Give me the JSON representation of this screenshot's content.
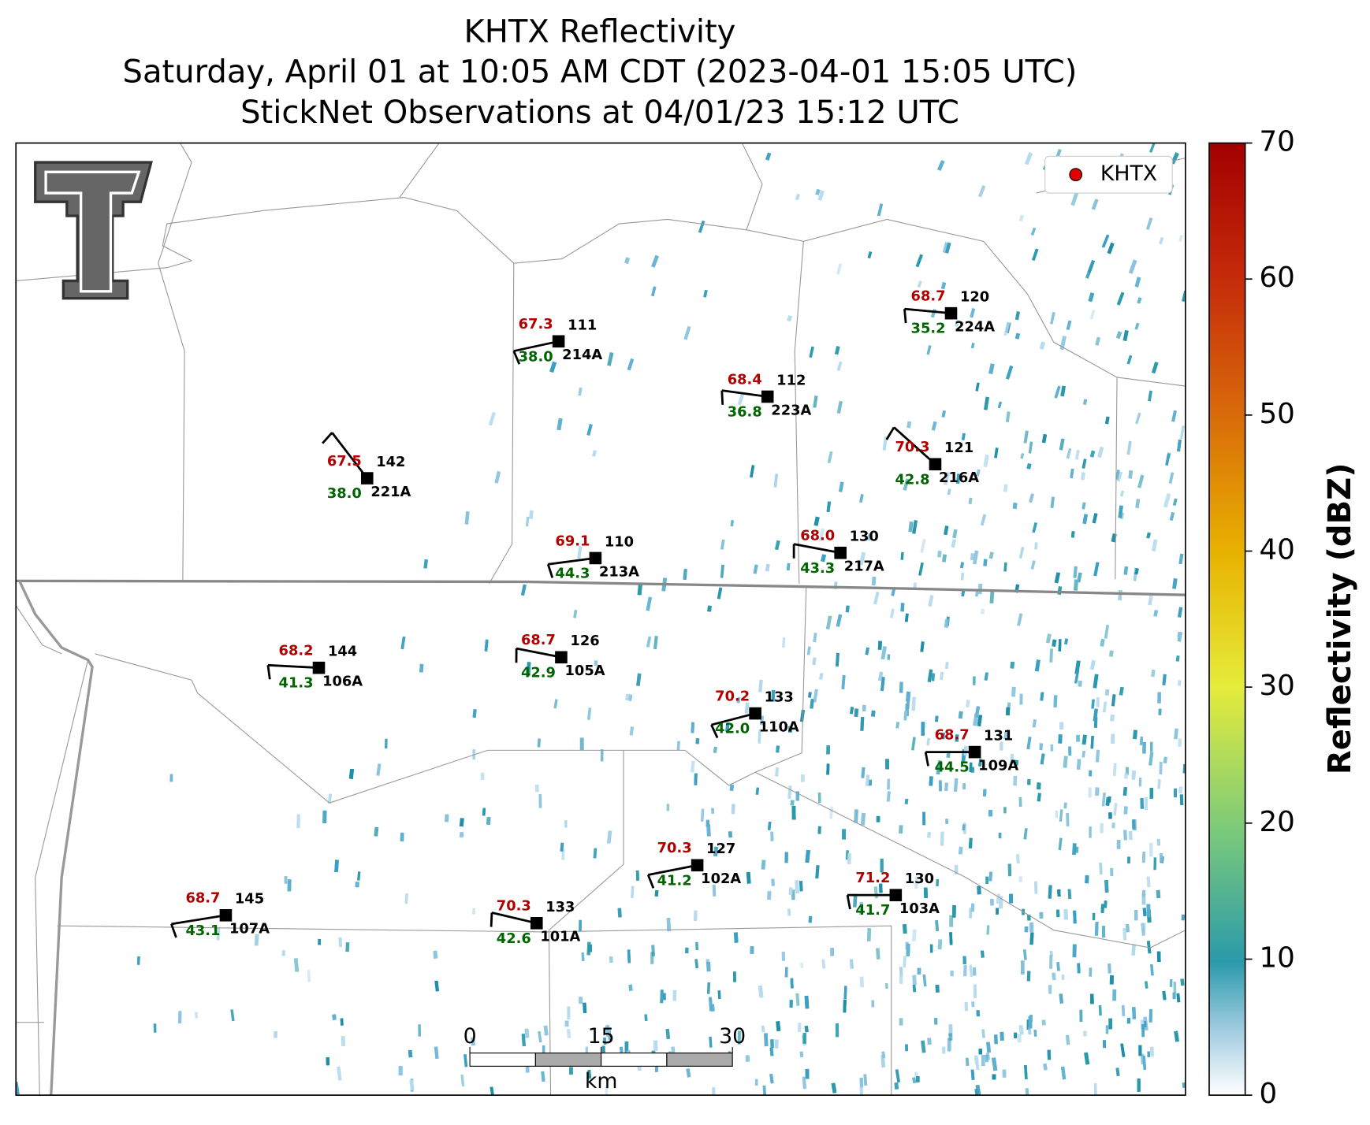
{
  "title": [
    "KHTX Reflectivity",
    "Saturday, April 01 at 10:05 AM CDT (2023-04-01 15:05 UTC)",
    "StickNet Observations at 04/01/23 15:12 UTC"
  ],
  "legend": {
    "label": "KHTX",
    "color": "#e00000"
  },
  "colorbar": {
    "label": "Reflectivity (dBZ)",
    "range": [
      0,
      70
    ],
    "ticks": [
      0,
      10,
      20,
      30,
      40,
      50,
      60,
      70
    ]
  },
  "scale_bar": {
    "ticks": [
      0,
      15,
      30
    ],
    "unit": "km"
  },
  "stations": [
    {
      "id": "214A",
      "temperature": "67.3",
      "dewpoint": "38.0",
      "value": "111"
    },
    {
      "id": "221A",
      "temperature": "67.5",
      "dewpoint": "38.0",
      "value": "142"
    },
    {
      "id": "223A",
      "temperature": "68.4",
      "dewpoint": "36.8",
      "value": "112"
    },
    {
      "id": "224A",
      "temperature": "68.7",
      "dewpoint": "35.2",
      "value": "120"
    },
    {
      "id": "216A",
      "temperature": "70.3",
      "dewpoint": "42.8",
      "value": "121"
    },
    {
      "id": "213A",
      "temperature": "69.1",
      "dewpoint": "44.3",
      "value": "110"
    },
    {
      "id": "217A",
      "temperature": "68.0",
      "dewpoint": "43.3",
      "value": "130"
    },
    {
      "id": "106A",
      "temperature": "68.2",
      "dewpoint": "41.3",
      "value": "144"
    },
    {
      "id": "105A",
      "temperature": "68.7",
      "dewpoint": "42.9",
      "value": "126"
    },
    {
      "id": "110A",
      "temperature": "70.2",
      "dewpoint": "42.0",
      "value": "133"
    },
    {
      "id": "109A",
      "temperature": "68.7",
      "dewpoint": "44.5",
      "value": "131"
    },
    {
      "id": "102A",
      "temperature": "70.3",
      "dewpoint": "41.2",
      "value": "127"
    },
    {
      "id": "103A",
      "temperature": "71.2",
      "dewpoint": "41.7",
      "value": "130"
    },
    {
      "id": "107A",
      "temperature": "68.7",
      "dewpoint": "43.1",
      "value": "145"
    },
    {
      "id": "101A",
      "temperature": "70.3",
      "dewpoint": "42.6",
      "value": "133"
    }
  ]
}
